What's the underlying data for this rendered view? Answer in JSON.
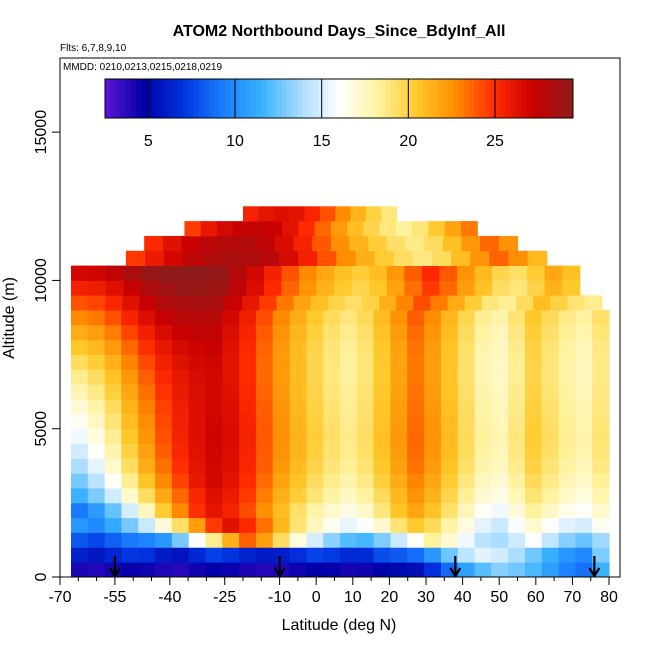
{
  "chart_data": {
    "type": "heatmap",
    "title": "ATOM2 Northbound Days_Since_BdyInf_All",
    "flights_label": "Flts: 6,7,8,9,10",
    "dates_label": "MMDD: 0210,0213,0215,0218,0219",
    "xlabel": "Latitude (deg N)",
    "ylabel": "Altitude (m)",
    "xlim": [
      -70,
      83
    ],
    "ylim": [
      0,
      17500
    ],
    "x_major_ticks": [
      -70,
      -55,
      -40,
      -25,
      -10,
      0,
      10,
      20,
      30,
      40,
      50,
      60,
      70,
      80
    ],
    "x_minor_ticks": [
      -65,
      -60,
      -50,
      -45,
      -35,
      -30,
      -20,
      -15,
      -5,
      5,
      15,
      25,
      35,
      45,
      55,
      65,
      75
    ],
    "y_ticks": [
      0,
      5000,
      10000,
      15000
    ],
    "colorbar": {
      "min": 2.5,
      "max": 29.5,
      "ticks": [
        5,
        10,
        15,
        20,
        25
      ],
      "colors": [
        "#5b16d8",
        "#0000a6",
        "#0033e0",
        "#1a7cff",
        "#36b0ff",
        "#a8dcff",
        "#ffffff",
        "#fff3a0",
        "#ffc829",
        "#ff8c00",
        "#ff2a00",
        "#c80000",
        "#8f1a1a"
      ]
    },
    "profile_latitudes": [
      -55,
      -10,
      38,
      76
    ],
    "altitude_bins": [
      {
        "alt": 250,
        "lat_min": -67,
        "lat_max": 80,
        "values": [
          4.1,
          3.9,
          4.2,
          4.6,
          4.4,
          4.0,
          3.8,
          4.3,
          4.7,
          4.5,
          4.1,
          3.9,
          4.0,
          4.4,
          4.8,
          4.6,
          4.2,
          4.3,
          4.9,
          5.1,
          5.4,
          6.8,
          8.7,
          10.9,
          12.2,
          13.1,
          12.7,
          11.9,
          10.8,
          9.5,
          8.9,
          11.6
        ]
      },
      {
        "alt": 750,
        "lat_min": -67,
        "lat_max": 80,
        "values": [
          6.2,
          5.8,
          6.4,
          7.1,
          6.9,
          6.0,
          5.6,
          6.5,
          7.4,
          7.0,
          6.3,
          5.9,
          6.1,
          6.8,
          7.5,
          7.2,
          6.6,
          6.7,
          7.8,
          8.2,
          8.8,
          10.4,
          12.6,
          14.3,
          15.2,
          14.8,
          13.9,
          12.7,
          11.5,
          10.4,
          9.8,
          12.9
        ]
      },
      {
        "alt": 1250,
        "lat_min": -67,
        "lat_max": 80,
        "values": [
          8.1,
          7.6,
          8.4,
          9.2,
          9.6,
          10.5,
          12.8,
          15.9,
          18.6,
          21.4,
          23.8,
          22.1,
          19.4,
          16.8,
          14.9,
          13.2,
          12.1,
          11.8,
          12.9,
          14.6,
          16.2,
          18.3,
          17.1,
          15.6,
          14.2,
          13.8,
          14.7,
          15.9,
          14.4,
          13.1,
          12.5,
          13.6
        ]
      },
      {
        "alt": 1750,
        "lat_min": -67,
        "lat_max": 80,
        "values": [
          10.4,
          9.8,
          11.2,
          12.8,
          14.6,
          16.9,
          19.3,
          22.1,
          24.7,
          26.3,
          25.1,
          23.4,
          21.2,
          19.1,
          17.6,
          16.3,
          15.4,
          15.9,
          17.2,
          19.1,
          20.4,
          19.6,
          18.1,
          16.7,
          15.3,
          14.6,
          15.8,
          17.2,
          16.1,
          15.2,
          14.9,
          16.3
        ]
      },
      {
        "alt": 2250,
        "lat_min": -67,
        "lat_max": 80,
        "values": [
          9.2,
          10.6,
          12.4,
          14.9,
          17.6,
          20.3,
          22.8,
          24.9,
          26.1,
          25.4,
          24.2,
          22.6,
          20.9,
          19.3,
          18.1,
          17.2,
          16.6,
          17.3,
          18.9,
          20.6,
          21.8,
          20.7,
          19.2,
          17.6,
          16.2,
          15.7,
          16.9,
          18.3,
          17.4,
          16.5,
          16.1,
          17.2
        ]
      },
      {
        "alt": 2750,
        "lat_min": -67,
        "lat_max": 80,
        "values": [
          11.6,
          12.9,
          14.8,
          17.2,
          19.4,
          21.7,
          23.6,
          25.2,
          26.4,
          25.8,
          24.6,
          23.1,
          21.4,
          20.2,
          19.0,
          18.1,
          17.5,
          18.2,
          19.6,
          21.1,
          22.4,
          21.3,
          19.8,
          18.4,
          17.1,
          16.6,
          17.7,
          19.1,
          18.2,
          17.3,
          16.8,
          17.9
        ]
      },
      {
        "alt": 3250,
        "lat_min": -67,
        "lat_max": 80,
        "values": [
          12.8,
          14.2,
          16.1,
          18.5,
          20.6,
          22.8,
          24.4,
          25.9,
          26.8,
          26.2,
          25.0,
          23.5,
          21.9,
          20.6,
          19.5,
          18.6,
          18.0,
          18.7,
          20.1,
          21.6,
          22.9,
          21.8,
          20.3,
          18.9,
          17.6,
          17.1,
          18.2,
          19.6,
          18.7,
          17.8,
          17.3,
          18.4
        ]
      },
      {
        "alt": 3750,
        "lat_min": -67,
        "lat_max": 80,
        "values": [
          13.9,
          15.3,
          17.2,
          19.4,
          21.5,
          23.4,
          24.9,
          26.1,
          26.9,
          26.4,
          25.2,
          23.8,
          22.3,
          21.0,
          19.9,
          19.0,
          18.4,
          19.1,
          20.5,
          22.0,
          23.3,
          22.2,
          20.7,
          19.3,
          18.0,
          17.5,
          18.6,
          20.0,
          19.1,
          18.2,
          17.7,
          18.8
        ]
      },
      {
        "alt": 4250,
        "lat_min": -67,
        "lat_max": 80,
        "values": [
          14.8,
          16.1,
          17.9,
          20.0,
          22.0,
          23.8,
          25.2,
          26.3,
          27.0,
          26.5,
          25.3,
          23.9,
          22.5,
          21.2,
          20.1,
          19.2,
          18.6,
          19.3,
          20.7,
          22.2,
          23.5,
          22.4,
          20.9,
          19.5,
          18.2,
          17.7,
          18.8,
          20.2,
          19.3,
          18.4,
          17.9,
          19.0
        ]
      },
      {
        "alt": 4750,
        "lat_min": -67,
        "lat_max": 80,
        "values": [
          15.6,
          16.8,
          18.5,
          20.5,
          22.4,
          24.1,
          25.4,
          26.4,
          27.1,
          26.6,
          25.4,
          24.0,
          22.6,
          21.3,
          20.2,
          19.3,
          18.7,
          19.4,
          20.8,
          22.3,
          23.6,
          22.5,
          21.0,
          19.6,
          18.3,
          17.8,
          18.9,
          20.3,
          19.4,
          18.5,
          18.0,
          19.1
        ]
      },
      {
        "alt": 5250,
        "lat_min": -67,
        "lat_max": 80,
        "values": [
          16.3,
          17.4,
          19.0,
          20.9,
          22.7,
          24.3,
          25.5,
          26.4,
          27.0,
          26.5,
          25.3,
          23.9,
          22.5,
          21.2,
          20.1,
          19.2,
          18.6,
          19.3,
          20.7,
          22.2,
          23.5,
          22.4,
          20.9,
          19.5,
          18.2,
          17.7,
          18.8,
          20.2,
          19.3,
          18.4,
          17.9,
          19.0
        ]
      },
      {
        "alt": 5750,
        "lat_min": -67,
        "lat_max": 80,
        "values": [
          17.0,
          18.0,
          19.5,
          21.3,
          23.0,
          24.5,
          25.6,
          26.4,
          26.9,
          26.4,
          25.2,
          23.8,
          22.4,
          21.1,
          20.0,
          19.1,
          18.5,
          19.2,
          20.6,
          22.1,
          23.4,
          22.3,
          20.8,
          19.4,
          18.1,
          17.6,
          18.7,
          20.1,
          19.2,
          18.3,
          17.8,
          18.9
        ]
      },
      {
        "alt": 6250,
        "lat_min": -67,
        "lat_max": 80,
        "values": [
          17.8,
          18.7,
          20.1,
          21.8,
          23.4,
          24.8,
          25.8,
          26.5,
          26.9,
          26.3,
          25.1,
          23.7,
          22.3,
          21.0,
          19.9,
          19.0,
          18.4,
          19.1,
          20.5,
          22.0,
          23.3,
          22.2,
          20.7,
          19.3,
          18.0,
          17.5,
          18.6,
          20.0,
          19.1,
          18.2,
          17.7,
          18.8
        ]
      },
      {
        "alt": 6750,
        "lat_min": -67,
        "lat_max": 80,
        "values": [
          18.6,
          19.4,
          20.7,
          22.3,
          23.8,
          25.1,
          26.0,
          26.6,
          26.9,
          26.2,
          25.0,
          23.6,
          22.2,
          20.9,
          19.8,
          18.9,
          18.3,
          19.0,
          20.4,
          21.9,
          23.2,
          22.1,
          20.6,
          19.2,
          17.9,
          17.4,
          18.5,
          19.9,
          19.0,
          18.1,
          17.6,
          18.7
        ]
      },
      {
        "alt": 7250,
        "lat_min": -67,
        "lat_max": 80,
        "values": [
          19.5,
          20.2,
          21.4,
          22.9,
          24.3,
          25.5,
          26.3,
          26.8,
          27.0,
          26.2,
          25.0,
          23.6,
          22.2,
          20.9,
          19.8,
          18.9,
          18.3,
          19.0,
          20.4,
          21.9,
          23.2,
          22.1,
          20.6,
          19.2,
          17.9,
          17.4,
          18.5,
          19.9,
          19.0,
          18.1,
          17.6,
          18.7
        ]
      },
      {
        "alt": 7750,
        "lat_min": -67,
        "lat_max": 80,
        "values": [
          20.5,
          21.1,
          22.2,
          23.6,
          24.9,
          26.0,
          26.7,
          27.1,
          27.2,
          26.3,
          25.1,
          23.7,
          22.3,
          21.0,
          19.9,
          19.0,
          18.4,
          19.1,
          20.5,
          22.0,
          23.3,
          22.2,
          20.7,
          19.3,
          18.0,
          17.5,
          18.6,
          20.0,
          19.1,
          18.2,
          17.7,
          18.8
        ]
      },
      {
        "alt": 8250,
        "lat_min": -67,
        "lat_max": 80,
        "values": [
          21.6,
          22.1,
          23.1,
          24.4,
          25.6,
          26.6,
          27.2,
          27.5,
          27.5,
          26.5,
          25.3,
          23.9,
          22.5,
          21.2,
          20.1,
          19.2,
          18.6,
          19.3,
          20.7,
          22.2,
          23.5,
          22.4,
          20.9,
          19.5,
          18.2,
          17.7,
          18.8,
          20.2,
          19.3,
          18.4,
          17.9,
          19.0
        ]
      },
      {
        "alt": 8750,
        "lat_min": -67,
        "lat_max": 80,
        "values": [
          22.8,
          23.2,
          24.1,
          25.3,
          26.4,
          27.3,
          27.8,
          28.0,
          27.9,
          26.8,
          25.6,
          24.2,
          22.8,
          21.5,
          20.4,
          19.5,
          18.9,
          19.6,
          21.0,
          22.5,
          23.8,
          22.7,
          21.2,
          19.8,
          18.5,
          18.0,
          19.1,
          20.5,
          19.6,
          18.7,
          18.2,
          19.3
        ]
      },
      {
        "alt": 9250,
        "lat_min": -67,
        "lat_max": 78,
        "values": [
          24.1,
          24.4,
          25.2,
          26.3,
          27.3,
          28.1,
          28.5,
          28.6,
          28.4,
          27.2,
          26.0,
          24.6,
          23.2,
          21.9,
          20.8,
          19.9,
          19.3,
          20.0,
          21.4,
          22.9,
          24.2,
          23.1,
          21.6,
          20.2,
          18.9,
          18.4,
          19.5,
          20.9,
          20.0,
          19.1,
          18.6
        ]
      },
      {
        "alt": 9750,
        "lat_min": -67,
        "lat_max": 72,
        "values": [
          25.5,
          25.7,
          26.4,
          27.4,
          28.3,
          28.9,
          29.2,
          29.2,
          28.9,
          27.7,
          26.5,
          25.1,
          23.7,
          22.4,
          21.3,
          20.4,
          19.8,
          20.5,
          21.9,
          23.4,
          24.7,
          23.6,
          22.1,
          20.7,
          19.4,
          18.9,
          19.9,
          21.3,
          20.4
        ]
      },
      {
        "alt": 10250,
        "lat_min": -67,
        "lat_max": 72,
        "values": [
          26.9,
          27.0,
          27.6,
          28.5,
          29.2,
          29.6,
          29.7,
          29.6,
          29.3,
          28.1,
          26.9,
          25.5,
          24.1,
          22.8,
          21.7,
          20.8,
          20.2,
          20.9,
          22.3,
          23.8,
          25.1,
          24.0,
          22.5,
          21.1,
          19.8,
          19.3,
          20.3,
          21.7,
          20.8
        ]
      },
      {
        "alt": 10750,
        "lat_min": -52,
        "lat_max": 63,
        "values": [
          24.7,
          25.8,
          26.9,
          27.7,
          28.2,
          28.4,
          28.3,
          27.9,
          26.7,
          25.5,
          24.1,
          22.7,
          21.4,
          20.3,
          19.4,
          18.8,
          19.5,
          20.9,
          22.4,
          23.7,
          22.6,
          21.1
        ]
      },
      {
        "alt": 11250,
        "lat_min": -47,
        "lat_max": 55,
        "values": [
          25.1,
          26.3,
          27.2,
          27.8,
          28.1,
          28.1,
          27.7,
          26.6,
          25.4,
          24.0,
          22.6,
          21.3,
          20.2,
          19.3,
          18.7,
          19.4,
          20.8,
          22.3,
          23.6,
          22.5
        ]
      },
      {
        "alt": 11750,
        "lat_min": -36,
        "lat_max": 44,
        "values": [
          24.6,
          25.9,
          26.8,
          27.3,
          27.5,
          27.2,
          26.2,
          25.0,
          23.6,
          22.2,
          20.9,
          19.8,
          18.9,
          18.3,
          19.0,
          20.4,
          21.9,
          23.2
        ]
      },
      {
        "alt": 12250,
        "lat_min": -20,
        "lat_max": 22,
        "values": [
          25.4,
          26.1,
          26.4,
          26.2,
          25.3,
          24.1,
          22.7,
          21.3,
          20.0,
          18.9
        ]
      }
    ]
  }
}
